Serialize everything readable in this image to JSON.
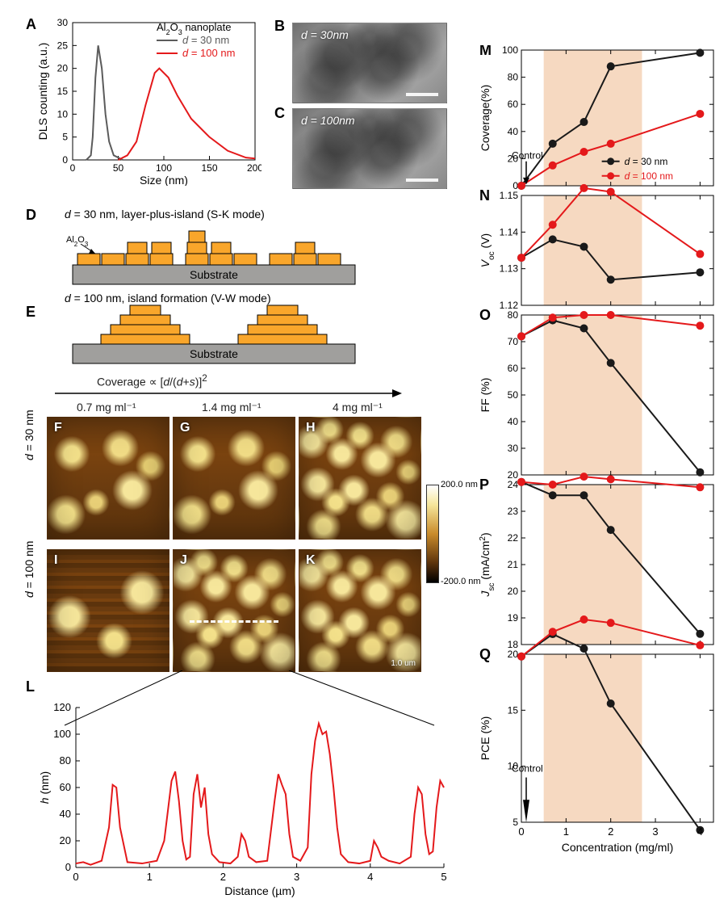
{
  "colors": {
    "red": "#E4191B",
    "black": "#1a1a1a",
    "gray": "#5b5b5b",
    "orange": "#F9A62B",
    "subgray": "#A09F9D",
    "band": "#f6d9c1"
  },
  "panelA": {
    "title_sub": "Al",
    "title_sub2": "2",
    "title_sub3": "O",
    "title_sub4": "3",
    "title_rest": " nanoplate",
    "legend1": "d = 30 nm",
    "legend2": "d = 100 nm",
    "xlabel": "Size (nm)",
    "ylabel": "DLS counting (a.u.)",
    "xticks": [
      0,
      50,
      100,
      150,
      200
    ],
    "yticks": [
      0,
      5,
      10,
      15,
      20,
      25,
      30
    ],
    "series30": [
      [
        15,
        0
      ],
      [
        20,
        1
      ],
      [
        22,
        5
      ],
      [
        25,
        18
      ],
      [
        28,
        25
      ],
      [
        32,
        20
      ],
      [
        36,
        10
      ],
      [
        40,
        4
      ],
      [
        45,
        1
      ],
      [
        55,
        0
      ]
    ],
    "series100": [
      [
        50,
        0
      ],
      [
        60,
        1
      ],
      [
        70,
        4
      ],
      [
        80,
        12
      ],
      [
        90,
        19
      ],
      [
        95,
        20
      ],
      [
        105,
        18
      ],
      [
        115,
        14
      ],
      [
        130,
        9
      ],
      [
        150,
        5
      ],
      [
        170,
        2
      ],
      [
        190,
        0.5
      ],
      [
        200,
        0.3
      ]
    ]
  },
  "panelB": {
    "label": "d = 30nm"
  },
  "panelC": {
    "label": "d = 100nm"
  },
  "panelD": {
    "caption": "d = 30 nm, layer-plus-island (S-K mode)",
    "al2o3": "Al2O3",
    "substrate": "Substrate"
  },
  "panelE": {
    "caption": "d = 100 nm, island formation (V-W mode)",
    "substrate": "Substrate"
  },
  "coverageFormula": "Coverage ∝ [d/(d+s)]²",
  "conc_labels": [
    "0.7 mg ml⁻¹",
    "1.4 mg ml⁻¹",
    "4 mg ml⁻¹"
  ],
  "row_labels": {
    "r1": "d = 30 nm",
    "r2": "d = 100 nm"
  },
  "colorbar": {
    "top": "200.0 nm",
    "bottom": "-200.0 nm"
  },
  "afm_scale": "1.0 um",
  "panelL": {
    "xlabel": "Distance (µm)",
    "ylabel": "h (nm)",
    "xticks": [
      0,
      1,
      2,
      3,
      4,
      5
    ],
    "yticks": [
      0,
      20,
      40,
      60,
      80,
      100,
      120
    ],
    "series": [
      [
        0,
        3
      ],
      [
        0.1,
        4
      ],
      [
        0.2,
        2
      ],
      [
        0.35,
        5
      ],
      [
        0.45,
        30
      ],
      [
        0.5,
        62
      ],
      [
        0.55,
        60
      ],
      [
        0.6,
        30
      ],
      [
        0.7,
        4
      ],
      [
        0.9,
        3
      ],
      [
        1.1,
        5
      ],
      [
        1.2,
        20
      ],
      [
        1.3,
        65
      ],
      [
        1.35,
        72
      ],
      [
        1.4,
        50
      ],
      [
        1.45,
        20
      ],
      [
        1.5,
        6
      ],
      [
        1.55,
        8
      ],
      [
        1.6,
        55
      ],
      [
        1.65,
        70
      ],
      [
        1.7,
        45
      ],
      [
        1.75,
        60
      ],
      [
        1.8,
        25
      ],
      [
        1.85,
        10
      ],
      [
        1.95,
        4
      ],
      [
        2.1,
        3
      ],
      [
        2.2,
        8
      ],
      [
        2.25,
        25
      ],
      [
        2.3,
        20
      ],
      [
        2.35,
        8
      ],
      [
        2.45,
        4
      ],
      [
        2.6,
        5
      ],
      [
        2.7,
        50
      ],
      [
        2.75,
        70
      ],
      [
        2.8,
        62
      ],
      [
        2.85,
        55
      ],
      [
        2.9,
        25
      ],
      [
        2.95,
        8
      ],
      [
        3.05,
        5
      ],
      [
        3.15,
        15
      ],
      [
        3.2,
        70
      ],
      [
        3.25,
        95
      ],
      [
        3.3,
        108
      ],
      [
        3.35,
        100
      ],
      [
        3.4,
        102
      ],
      [
        3.45,
        85
      ],
      [
        3.5,
        60
      ],
      [
        3.55,
        30
      ],
      [
        3.6,
        10
      ],
      [
        3.7,
        4
      ],
      [
        3.85,
        3
      ],
      [
        4.0,
        5
      ],
      [
        4.05,
        20
      ],
      [
        4.1,
        15
      ],
      [
        4.15,
        8
      ],
      [
        4.25,
        5
      ],
      [
        4.4,
        3
      ],
      [
        4.55,
        8
      ],
      [
        4.6,
        40
      ],
      [
        4.65,
        60
      ],
      [
        4.7,
        55
      ],
      [
        4.75,
        25
      ],
      [
        4.8,
        10
      ],
      [
        4.85,
        12
      ],
      [
        4.9,
        45
      ],
      [
        4.95,
        65
      ],
      [
        5.0,
        60
      ]
    ]
  },
  "rightStack": {
    "x": {
      "label": "Concentration (mg/ml)",
      "ticks": [
        0,
        1,
        2,
        3,
        4
      ],
      "band": [
        0.5,
        2.7
      ],
      "control": "Control"
    },
    "legend": {
      "d30": "d = 30 nm",
      "d100": "d = 100 nm"
    },
    "M": {
      "ylabel": "Coverage(%)",
      "yticks": [
        0,
        20,
        40,
        60,
        80,
        100
      ],
      "d30": [
        [
          0,
          0
        ],
        [
          0.7,
          31
        ],
        [
          1.4,
          47
        ],
        [
          2.0,
          88
        ],
        [
          4.0,
          98
        ]
      ],
      "d100": [
        [
          0,
          0
        ],
        [
          0.7,
          15
        ],
        [
          1.4,
          25
        ],
        [
          2.0,
          31
        ],
        [
          4.0,
          53
        ]
      ]
    },
    "N": {
      "ylabel": "Voc (V)",
      "yticks": [
        1.12,
        1.13,
        1.14,
        1.15
      ],
      "d30": [
        [
          0,
          1.133
        ],
        [
          0.7,
          1.138
        ],
        [
          1.4,
          1.136
        ],
        [
          2.0,
          1.127
        ],
        [
          4.0,
          1.129
        ]
      ],
      "d100": [
        [
          0,
          1.133
        ],
        [
          0.7,
          1.142
        ],
        [
          1.4,
          1.152
        ],
        [
          2.0,
          1.151
        ],
        [
          4.0,
          1.134
        ]
      ]
    },
    "O": {
      "ylabel": "FF (%)",
      "yticks": [
        20,
        30,
        40,
        50,
        60,
        70,
        80
      ],
      "d30": [
        [
          0,
          72
        ],
        [
          0.7,
          78
        ],
        [
          1.4,
          75
        ],
        [
          2.0,
          62
        ],
        [
          4.0,
          21
        ]
      ],
      "d100": [
        [
          0,
          72
        ],
        [
          0.7,
          79
        ],
        [
          1.4,
          80
        ],
        [
          2.0,
          80
        ],
        [
          4.0,
          76
        ]
      ]
    },
    "P": {
      "ylabel": "Jsc (mA/cm²)",
      "yticks": [
        18,
        19,
        20,
        21,
        22,
        23,
        24
      ],
      "d30": [
        [
          0,
          24.1
        ],
        [
          0.7,
          23.6
        ],
        [
          1.4,
          23.6
        ],
        [
          2.0,
          22.3
        ],
        [
          4.0,
          18.4
        ]
      ],
      "d100": [
        [
          0,
          24.1
        ],
        [
          0.7,
          24.0
        ],
        [
          1.4,
          24.3
        ],
        [
          2.0,
          24.2
        ],
        [
          4.0,
          23.9
        ]
      ]
    },
    "Q": {
      "ylabel": "PCE (%)",
      "yticks": [
        5,
        10,
        15,
        20
      ],
      "d30": [
        [
          0,
          19.8
        ],
        [
          0.7,
          21.8
        ],
        [
          1.4,
          20.5
        ],
        [
          2.0,
          15.6
        ],
        [
          4.0,
          4.3
        ]
      ],
      "d100": [
        [
          0,
          19.8
        ],
        [
          0.7,
          22.0
        ],
        [
          1.4,
          23.1
        ],
        [
          2.0,
          22.8
        ],
        [
          4.0,
          20.8
        ]
      ]
    }
  }
}
